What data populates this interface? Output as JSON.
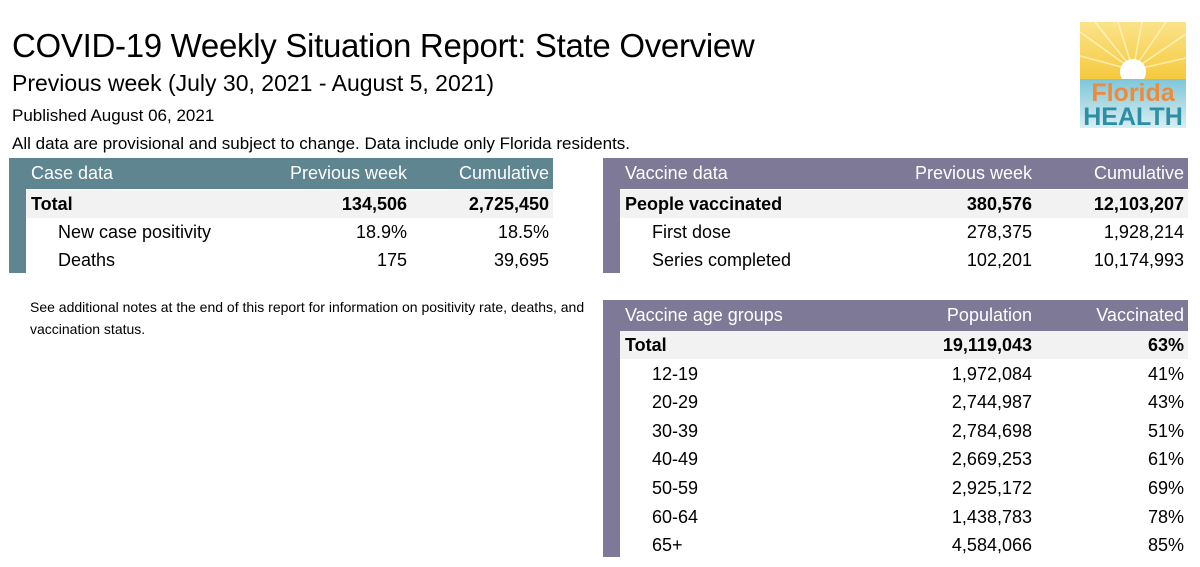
{
  "header": {
    "title": "COVID-19 Weekly Situation Report: State Overview",
    "subtitle": "Previous week (July 30, 2021 - August 5, 2021)",
    "published": "Published August 06, 2021",
    "disclaimer": "All data are provisional and subject to change. Data include only Florida residents."
  },
  "logo": {
    "line1": "Florida",
    "line2": "HEALTH",
    "icon": "sun-over-water-logo"
  },
  "case_table": {
    "headers": [
      "Case data",
      "Previous week",
      "Cumulative"
    ],
    "rows": [
      {
        "label": "Total",
        "prev": "134,506",
        "cum": "2,725,450"
      },
      {
        "label": "New case positivity",
        "prev": "18.9%",
        "cum": "18.5%"
      },
      {
        "label": "Deaths",
        "prev": "175",
        "cum": "39,695"
      }
    ]
  },
  "note": "See additional notes at the end of this report for information on positivity rate, deaths, and vaccination status.",
  "vaccine_table": {
    "headers": [
      "Vaccine data",
      "Previous week",
      "Cumulative"
    ],
    "rows": [
      {
        "label": "People vaccinated",
        "prev": "380,576",
        "cum": "12,103,207"
      },
      {
        "label": "First dose",
        "prev": "278,375",
        "cum": "1,928,214"
      },
      {
        "label": "Series completed",
        "prev": "102,201",
        "cum": "10,174,993"
      }
    ]
  },
  "age_table": {
    "headers": [
      "Vaccine age groups",
      "Population",
      "Vaccinated"
    ],
    "rows": [
      {
        "label": "Total",
        "pop": "19,119,043",
        "vac": "63%"
      },
      {
        "label": "12-19",
        "pop": "1,972,084",
        "vac": "41%"
      },
      {
        "label": "20-29",
        "pop": "2,744,987",
        "vac": "43%"
      },
      {
        "label": "30-39",
        "pop": "2,784,698",
        "vac": "51%"
      },
      {
        "label": "40-49",
        "pop": "2,669,253",
        "vac": "61%"
      },
      {
        "label": "50-59",
        "pop": "2,925,172",
        "vac": "69%"
      },
      {
        "label": "60-64",
        "pop": "1,438,783",
        "vac": "78%"
      },
      {
        "label": "65+",
        "pop": "4,584,066",
        "vac": "85%"
      }
    ]
  }
}
